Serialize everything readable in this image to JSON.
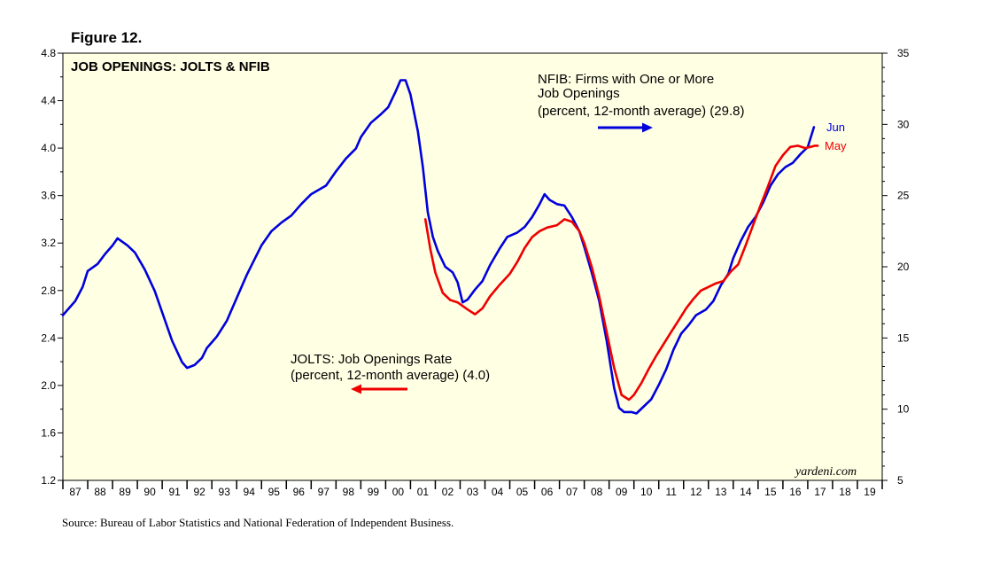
{
  "figure_label": "Figure 12.",
  "source": "Source:  Bureau of Labor Statistics and National Federation of Independent Business.",
  "chart_data": {
    "type": "line",
    "title": "JOB OPENINGS: JOLTS & NFIB",
    "watermark": "yardeni.com",
    "left_axis": {
      "ylim": [
        1.2,
        4.8
      ],
      "ticks": [
        "1.2",
        "1.6",
        "2.0",
        "2.4",
        "2.8",
        "3.2",
        "3.6",
        "4.0",
        "4.4",
        "4.8"
      ]
    },
    "right_axis": {
      "ylim": [
        5,
        35
      ],
      "ticks": [
        "5",
        "10",
        "15",
        "20",
        "25",
        "30",
        "35"
      ]
    },
    "x_axis": {
      "xlim": [
        1987,
        2020
      ],
      "year_labels": [
        "87",
        "88",
        "89",
        "90",
        "91",
        "92",
        "93",
        "94",
        "95",
        "96",
        "97",
        "98",
        "99",
        "00",
        "01",
        "02",
        "03",
        "04",
        "05",
        "06",
        "07",
        "08",
        "09",
        "10",
        "11",
        "12",
        "13",
        "14",
        "15",
        "16",
        "17",
        "18",
        "19"
      ]
    },
    "annotations": {
      "nfib_lines": [
        "NFIB: Firms with One or More",
        "Job Openings",
        "(percent, 12-month average) (29.8)"
      ],
      "jolts_lines": [
        "JOLTS: Job Openings Rate",
        "(percent, 12-month average) (4.0)"
      ],
      "nfib_end_label": "Jun",
      "jolts_end_label": "May"
    },
    "series": [
      {
        "name": "NFIB: Firms with One or More Job Openings",
        "axis": "right",
        "color": "#0000dd",
        "points": [
          [
            1987.0,
            16.6
          ],
          [
            1987.5,
            17.6
          ],
          [
            1987.8,
            18.6
          ],
          [
            1988.0,
            19.7
          ],
          [
            1988.4,
            20.2
          ],
          [
            1988.7,
            20.9
          ],
          [
            1989.0,
            21.5
          ],
          [
            1989.2,
            22.0
          ],
          [
            1989.6,
            21.5
          ],
          [
            1989.9,
            21.0
          ],
          [
            1990.3,
            19.8
          ],
          [
            1990.7,
            18.3
          ],
          [
            1991.0,
            16.8
          ],
          [
            1991.4,
            14.8
          ],
          [
            1991.8,
            13.3
          ],
          [
            1992.0,
            12.9
          ],
          [
            1992.3,
            13.1
          ],
          [
            1992.6,
            13.6
          ],
          [
            1992.8,
            14.3
          ],
          [
            1993.2,
            15.1
          ],
          [
            1993.6,
            16.2
          ],
          [
            1994.0,
            17.8
          ],
          [
            1994.4,
            19.4
          ],
          [
            1994.8,
            20.8
          ],
          [
            1995.0,
            21.5
          ],
          [
            1995.4,
            22.5
          ],
          [
            1995.8,
            23.1
          ],
          [
            1996.2,
            23.6
          ],
          [
            1996.6,
            24.4
          ],
          [
            1997.0,
            25.1
          ],
          [
            1997.6,
            25.7
          ],
          [
            1998.0,
            26.7
          ],
          [
            1998.4,
            27.6
          ],
          [
            1998.8,
            28.3
          ],
          [
            1999.0,
            29.1
          ],
          [
            1999.4,
            30.1
          ],
          [
            1999.8,
            30.7
          ],
          [
            2000.1,
            31.2
          ],
          [
            2000.4,
            32.3
          ],
          [
            2000.6,
            33.1
          ],
          [
            2000.8,
            33.1
          ],
          [
            2001.0,
            32.1
          ],
          [
            2001.3,
            29.5
          ],
          [
            2001.5,
            27.0
          ],
          [
            2001.7,
            23.8
          ],
          [
            2001.9,
            22.1
          ],
          [
            2002.1,
            21.1
          ],
          [
            2002.4,
            20.0
          ],
          [
            2002.7,
            19.6
          ],
          [
            2002.9,
            18.9
          ],
          [
            2003.1,
            17.5
          ],
          [
            2003.3,
            17.7
          ],
          [
            2003.6,
            18.4
          ],
          [
            2003.9,
            19.0
          ],
          [
            2004.2,
            20.1
          ],
          [
            2004.6,
            21.3
          ],
          [
            2004.9,
            22.1
          ],
          [
            2005.3,
            22.4
          ],
          [
            2005.6,
            22.8
          ],
          [
            2005.9,
            23.5
          ],
          [
            2006.2,
            24.4
          ],
          [
            2006.4,
            25.1
          ],
          [
            2006.6,
            24.7
          ],
          [
            2006.9,
            24.4
          ],
          [
            2007.2,
            24.3
          ],
          [
            2007.5,
            23.5
          ],
          [
            2007.8,
            22.5
          ],
          [
            2008.0,
            21.4
          ],
          [
            2008.3,
            19.6
          ],
          [
            2008.6,
            17.6
          ],
          [
            2008.9,
            14.8
          ],
          [
            2009.2,
            11.5
          ],
          [
            2009.4,
            10.1
          ],
          [
            2009.6,
            9.8
          ],
          [
            2009.9,
            9.8
          ],
          [
            2010.1,
            9.7
          ],
          [
            2010.4,
            10.2
          ],
          [
            2010.7,
            10.7
          ],
          [
            2011.0,
            11.7
          ],
          [
            2011.3,
            12.8
          ],
          [
            2011.6,
            14.2
          ],
          [
            2011.9,
            15.3
          ],
          [
            2012.2,
            15.9
          ],
          [
            2012.5,
            16.6
          ],
          [
            2012.9,
            17.0
          ],
          [
            2013.2,
            17.6
          ],
          [
            2013.5,
            18.7
          ],
          [
            2013.8,
            19.5
          ],
          [
            2014.0,
            20.6
          ],
          [
            2014.3,
            21.8
          ],
          [
            2014.6,
            22.8
          ],
          [
            2014.9,
            23.5
          ],
          [
            2015.2,
            24.5
          ],
          [
            2015.5,
            25.7
          ],
          [
            2015.8,
            26.5
          ],
          [
            2016.1,
            27.0
          ],
          [
            2016.4,
            27.3
          ],
          [
            2016.7,
            27.9
          ],
          [
            2017.0,
            28.4
          ],
          [
            2017.25,
            29.8
          ]
        ]
      },
      {
        "name": "JOLTS: Job Openings Rate",
        "axis": "left",
        "color": "#ee0000",
        "points": [
          [
            2001.6,
            3.4
          ],
          [
            2001.8,
            3.15
          ],
          [
            2002.0,
            2.95
          ],
          [
            2002.3,
            2.78
          ],
          [
            2002.6,
            2.72
          ],
          [
            2002.9,
            2.7
          ],
          [
            2003.3,
            2.64
          ],
          [
            2003.6,
            2.6
          ],
          [
            2003.9,
            2.65
          ],
          [
            2004.2,
            2.75
          ],
          [
            2004.6,
            2.85
          ],
          [
            2005.0,
            2.94
          ],
          [
            2005.3,
            3.04
          ],
          [
            2005.6,
            3.16
          ],
          [
            2005.9,
            3.25
          ],
          [
            2006.2,
            3.3
          ],
          [
            2006.5,
            3.33
          ],
          [
            2006.9,
            3.35
          ],
          [
            2007.2,
            3.4
          ],
          [
            2007.5,
            3.38
          ],
          [
            2007.8,
            3.3
          ],
          [
            2008.0,
            3.2
          ],
          [
            2008.3,
            3.0
          ],
          [
            2008.6,
            2.75
          ],
          [
            2008.9,
            2.45
          ],
          [
            2009.2,
            2.15
          ],
          [
            2009.5,
            1.92
          ],
          [
            2009.8,
            1.88
          ],
          [
            2010.0,
            1.92
          ],
          [
            2010.3,
            2.02
          ],
          [
            2010.6,
            2.14
          ],
          [
            2010.9,
            2.25
          ],
          [
            2011.2,
            2.35
          ],
          [
            2011.5,
            2.45
          ],
          [
            2011.8,
            2.55
          ],
          [
            2012.1,
            2.65
          ],
          [
            2012.4,
            2.73
          ],
          [
            2012.7,
            2.8
          ],
          [
            2013.0,
            2.83
          ],
          [
            2013.3,
            2.86
          ],
          [
            2013.6,
            2.88
          ],
          [
            2013.9,
            2.96
          ],
          [
            2014.2,
            3.02
          ],
          [
            2014.5,
            3.18
          ],
          [
            2014.8,
            3.35
          ],
          [
            2015.1,
            3.52
          ],
          [
            2015.4,
            3.68
          ],
          [
            2015.7,
            3.85
          ],
          [
            2016.0,
            3.94
          ],
          [
            2016.3,
            4.01
          ],
          [
            2016.6,
            4.02
          ],
          [
            2016.9,
            4.0
          ],
          [
            2017.1,
            4.01
          ],
          [
            2017.3,
            4.02
          ],
          [
            2017.4,
            4.02
          ]
        ]
      }
    ]
  }
}
